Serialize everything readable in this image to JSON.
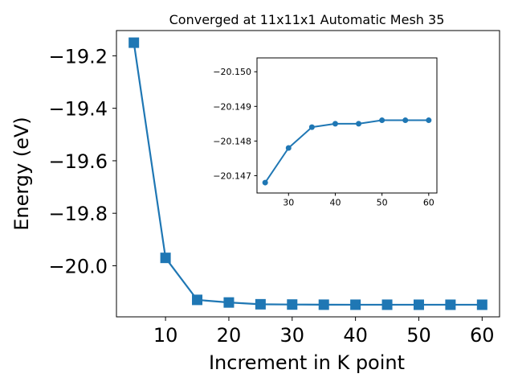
{
  "chart_data": [
    {
      "type": "line",
      "title": "Converged at 11x11x1 Automatic Mesh 35",
      "xlabel": "Increment in K point",
      "ylabel": "Energy (eV)",
      "x": [
        5,
        10,
        15,
        20,
        25,
        30,
        35,
        40,
        45,
        50,
        55,
        60
      ],
      "series": [
        {
          "values": [
            -19.15,
            -19.97,
            -20.13,
            -20.14,
            -20.1468,
            -20.1478,
            -20.1484,
            -20.1485,
            -20.1485,
            -20.1486,
            -20.1486,
            -20.1486
          ],
          "color": "#1f77b4",
          "marker": "square"
        }
      ],
      "xlim": [
        2.25,
        62.75
      ],
      "ylim": [
        -20.1947,
        -19.1038
      ],
      "xticks": [
        10,
        20,
        30,
        40,
        50,
        60
      ],
      "xtick_labels": [
        "10",
        "20",
        "30",
        "40",
        "50",
        "60"
      ],
      "yticks": [
        -19.2,
        -19.4,
        -19.6,
        -19.8,
        -20.0
      ],
      "ytick_labels": [
        "−19.2",
        "−19.4",
        "−19.6",
        "−19.8",
        "−20.0"
      ],
      "grid": false
    },
    {
      "type": "line",
      "inset": true,
      "x": [
        25,
        30,
        35,
        40,
        45,
        50,
        55,
        60
      ],
      "series": [
        {
          "values": [
            -20.1468,
            -20.1478,
            -20.1484,
            -20.1485,
            -20.1485,
            -20.1486,
            -20.1486,
            -20.1486
          ],
          "color": "#1f77b4",
          "marker": "circle"
        }
      ],
      "xlim": [
        23.25,
        61.75
      ],
      "ylim": [
        -20.1465,
        -20.1504
      ],
      "xticks": [
        30,
        40,
        50,
        60
      ],
      "xtick_labels": [
        "30",
        "40",
        "50",
        "60"
      ],
      "yticks": [
        -20.15,
        -20.149,
        -20.148,
        -20.147
      ],
      "ytick_labels": [
        "−20.150",
        "−20.149",
        "−20.148",
        "−20.147"
      ],
      "grid": false
    }
  ]
}
